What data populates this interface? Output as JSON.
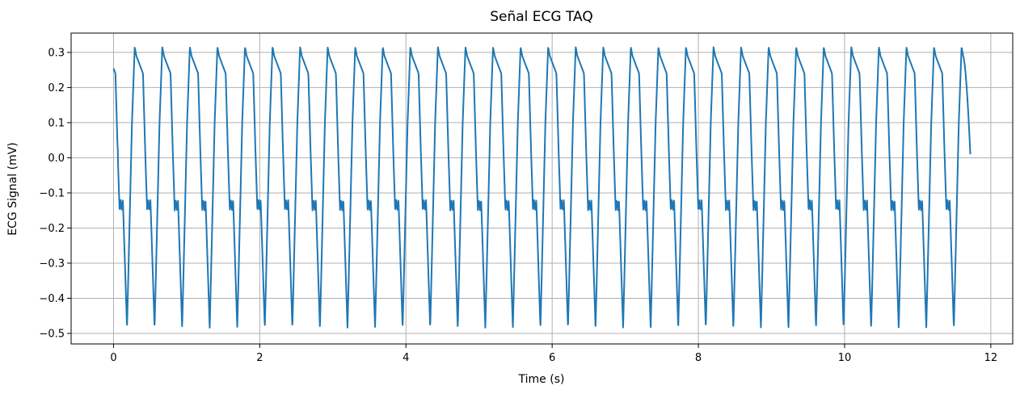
{
  "colors": {
    "series": "#1f77b4",
    "grid": "#b0b0b0",
    "axis": "#000000",
    "background": "#ffffff"
  },
  "chart_data": {
    "type": "line",
    "title": "Señal ECG TAQ",
    "xlabel": "Time (s)",
    "ylabel": "ECG Signal (mV)",
    "xlim": [
      -0.58,
      12.3
    ],
    "ylim": [
      -0.53,
      0.355
    ],
    "grid": true,
    "legend": "none",
    "xticks": [
      0,
      2,
      4,
      6,
      8,
      10,
      12
    ],
    "xtick_labels": [
      "0",
      "2",
      "4",
      "6",
      "8",
      "10",
      "12"
    ],
    "yticks": [
      -0.5,
      -0.4,
      -0.3,
      -0.2,
      -0.1,
      0.0,
      0.1,
      0.2,
      0.3
    ],
    "ytick_labels": [
      "−0.5",
      "−0.4",
      "−0.3",
      "−0.2",
      "−0.1",
      "0.0",
      "0.1",
      "0.2",
      "0.3"
    ],
    "series": [
      {
        "duration": 11.72,
        "cycle_period": 0.377,
        "first_peak_time": 0.29,
        "start_value": 0.195,
        "end_value": 0.01,
        "peak_value": 0.315,
        "trough_value": -0.485,
        "notch_value": -0.12,
        "notch_min_value": -0.15
      }
    ]
  }
}
